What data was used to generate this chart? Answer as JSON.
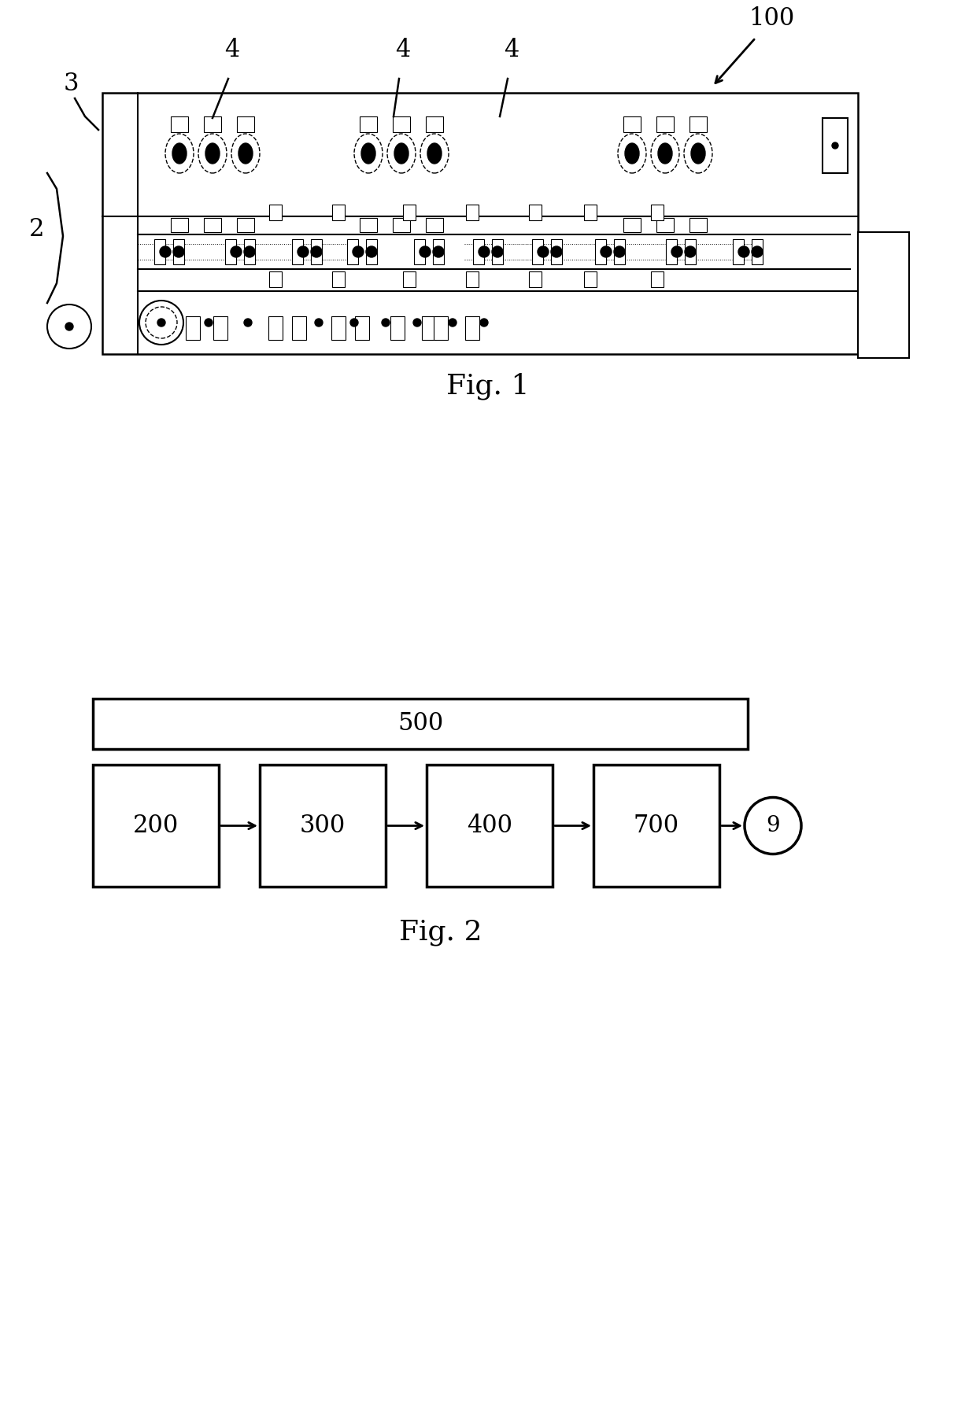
{
  "bg_color": "#ffffff",
  "line_color": "#000000",
  "fig1_caption": "Fig. 1",
  "fig2_caption": "Fig. 2",
  "label_100": "100",
  "label_2": "2",
  "label_3": "3",
  "label_4": "4",
  "fig2_box500": "500",
  "fig2_boxes": [
    "200",
    "300",
    "400",
    "700"
  ],
  "fig2_circle": "9"
}
